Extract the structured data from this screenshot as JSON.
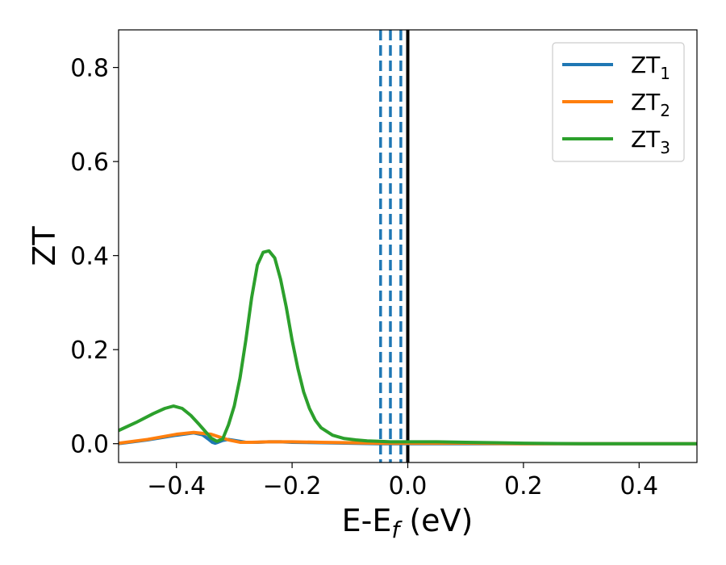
{
  "chart_data": {
    "type": "line",
    "xlabel": "E-E",
    "xlabel_subscript": "f",
    "xlabel_unit": " (eV)",
    "ylabel": "ZT",
    "xlim": [
      -0.5,
      0.5
    ],
    "ylim": [
      -0.04,
      0.88
    ],
    "xticks": [
      -0.4,
      -0.2,
      0.0,
      0.2,
      0.4
    ],
    "xtick_labels": [
      "−0.4",
      "−0.2",
      "0.0",
      "0.2",
      "0.4"
    ],
    "yticks": [
      0.0,
      0.2,
      0.4,
      0.6,
      0.8
    ],
    "ytick_labels": [
      "0.0",
      "0.2",
      "0.4",
      "0.6",
      "0.8"
    ],
    "grid": false,
    "legend_position": "top-right",
    "series": [
      {
        "name": "ZT",
        "subscript": "1",
        "color": "#1f77b4",
        "x": [
          -0.5,
          -0.45,
          -0.4,
          -0.37,
          -0.355,
          -0.345,
          -0.338,
          -0.333,
          -0.328,
          -0.32,
          -0.31,
          -0.3,
          -0.28,
          -0.26,
          -0.24,
          -0.22,
          -0.2,
          -0.15,
          -0.1,
          -0.05,
          0.0,
          0.05,
          0.1,
          0.2,
          0.3,
          0.4,
          0.5
        ],
        "y": [
          0.0,
          0.008,
          0.018,
          0.023,
          0.019,
          0.01,
          0.003,
          0.001,
          0.003,
          0.007,
          0.009,
          0.007,
          0.003,
          0.003,
          0.004,
          0.004,
          0.003,
          0.002,
          0.001,
          0.0,
          0.0,
          0.0,
          0.0,
          0.0,
          0.0,
          0.0,
          0.0
        ]
      },
      {
        "name": "ZT",
        "subscript": "2",
        "color": "#ff7f0e",
        "x": [
          -0.5,
          -0.45,
          -0.4,
          -0.37,
          -0.34,
          -0.31,
          -0.29,
          -0.27,
          -0.24,
          -0.2,
          -0.15,
          -0.1,
          -0.05,
          0.0,
          0.05,
          0.1,
          0.2,
          0.3,
          0.4,
          0.5
        ],
        "y": [
          0.001,
          0.009,
          0.02,
          0.024,
          0.02,
          0.008,
          0.003,
          0.003,
          0.004,
          0.004,
          0.003,
          0.002,
          0.001,
          0.001,
          0.001,
          0.001,
          0.0,
          0.0,
          0.0,
          0.0
        ]
      },
      {
        "name": "ZT",
        "subscript": "3",
        "color": "#2ca02c",
        "x": [
          -0.5,
          -0.47,
          -0.44,
          -0.42,
          -0.405,
          -0.39,
          -0.375,
          -0.36,
          -0.35,
          -0.34,
          -0.33,
          -0.32,
          -0.31,
          -0.3,
          -0.29,
          -0.28,
          -0.27,
          -0.26,
          -0.25,
          -0.24,
          -0.23,
          -0.22,
          -0.21,
          -0.2,
          -0.19,
          -0.18,
          -0.17,
          -0.16,
          -0.15,
          -0.13,
          -0.11,
          -0.09,
          -0.07,
          -0.05,
          -0.03,
          0.0,
          0.05,
          0.1,
          0.15,
          0.2,
          0.3,
          0.4,
          0.5
        ],
        "y": [
          0.028,
          0.045,
          0.064,
          0.075,
          0.08,
          0.075,
          0.06,
          0.04,
          0.026,
          0.012,
          0.005,
          0.01,
          0.04,
          0.08,
          0.14,
          0.22,
          0.31,
          0.38,
          0.407,
          0.41,
          0.395,
          0.35,
          0.29,
          0.22,
          0.16,
          0.11,
          0.075,
          0.05,
          0.034,
          0.018,
          0.011,
          0.008,
          0.006,
          0.005,
          0.004,
          0.004,
          0.004,
          0.003,
          0.002,
          0.001,
          0.0,
          0.0,
          0.0
        ]
      }
    ],
    "vertical_lines": [
      {
        "x": -0.047,
        "style": "dashed",
        "color": "#1f77b4"
      },
      {
        "x": -0.03,
        "style": "dashed",
        "color": "#1f77b4"
      },
      {
        "x": -0.012,
        "style": "dashed",
        "color": "#1f77b4"
      },
      {
        "x": 0.0,
        "style": "solid",
        "color": "#000000"
      }
    ]
  }
}
